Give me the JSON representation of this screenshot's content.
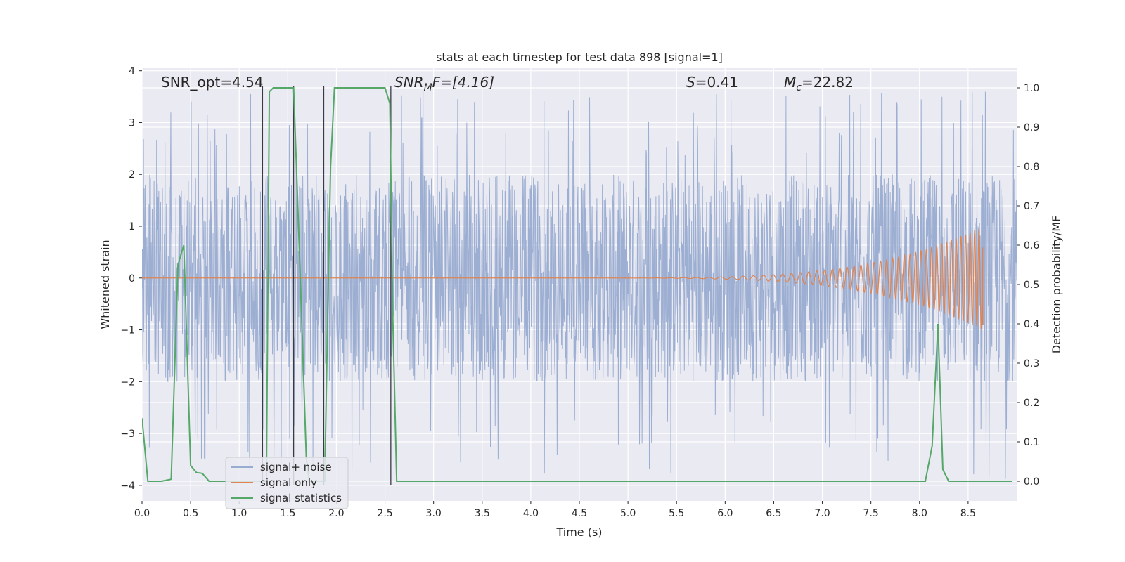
{
  "chart_data": {
    "type": "line",
    "title": "stats at each timestep for test data 898 [signal=1]",
    "xlabel": "Time (s)",
    "ylabel_left": "Whitened strain",
    "ylabel_right": "Detection probability/MF",
    "xlim": [
      0,
      9.0
    ],
    "ylim_left": [
      -4.3,
      4.05
    ],
    "ylim_right": [
      -0.05,
      1.05
    ],
    "x_ticks": [
      "0.0",
      "0.5",
      "1.0",
      "1.5",
      "2.0",
      "2.5",
      "3.0",
      "3.5",
      "4.0",
      "4.5",
      "5.0",
      "5.5",
      "6.0",
      "6.5",
      "7.0",
      "7.5",
      "8.0",
      "8.5"
    ],
    "y_left_ticks": [
      "4",
      "3",
      "2",
      "1",
      "0",
      "−1",
      "−2",
      "−3",
      "−4"
    ],
    "y_right_ticks": [
      "1.0",
      "0.9",
      "0.8",
      "0.7",
      "0.6",
      "0.5",
      "0.4",
      "0.3",
      "0.2",
      "0.1",
      "0.0"
    ],
    "grid": true,
    "legend_position": "lower-left",
    "annotations": {
      "snr_opt": "SNR_opt=4.54",
      "snr_mf_sym": "SNR",
      "snr_mf_sub": "M",
      "snr_mf_val": "F=[4.16]",
      "s_sym": "S",
      "s_val": "=0.41",
      "mc_sym": "M",
      "mc_sub": "c",
      "mc_val": "=22.82"
    },
    "series": [
      {
        "name": "signal+ noise",
        "color": "#98abd0",
        "description": "whitened strain noise, amplitude envelope roughly ±2 with spikes to about ±3.9",
        "envelope": [
          -2.0,
          2.0
        ],
        "peak_range": [
          -3.9,
          3.65
        ]
      },
      {
        "name": "signal only",
        "color": "#dd8452",
        "chirp": {
          "start": 4.3,
          "end": 8.65,
          "peak_amplitude": 1.0
        }
      },
      {
        "name": "signal statistics",
        "color": "#55a868",
        "axis": "right",
        "x": [
          0.0,
          0.06,
          0.12,
          0.2,
          0.3,
          0.37,
          0.43,
          0.5,
          0.56,
          0.62,
          0.69,
          0.75,
          0.8,
          0.9,
          1.0,
          1.1,
          1.2,
          1.24,
          1.28,
          1.31,
          1.35,
          1.4,
          1.5,
          1.56,
          1.6,
          1.65,
          1.69,
          1.72,
          1.75,
          1.8,
          1.85,
          1.88,
          1.91,
          1.94,
          1.98,
          2.05,
          2.2,
          2.4,
          2.5,
          2.55,
          2.58,
          2.62,
          2.7,
          3.0,
          4.0,
          5.0,
          6.0,
          7.0,
          7.8,
          8.06,
          8.13,
          8.19,
          8.24,
          8.3,
          8.4,
          8.6,
          8.95
        ],
        "values": [
          0.16,
          0.0,
          0.0,
          0.0,
          0.005,
          0.55,
          0.6,
          0.04,
          0.022,
          0.02,
          0.0,
          0.0,
          0.0,
          0.0,
          0.0,
          0.0,
          0.0,
          0.0,
          0.0,
          0.99,
          1.0,
          1.0,
          1.0,
          1.0,
          0.72,
          0.36,
          0.06,
          0.0,
          0.0,
          0.0,
          0.0,
          0.0,
          0.42,
          0.8,
          1.0,
          1.0,
          1.0,
          1.0,
          1.0,
          0.96,
          0.42,
          0.0,
          0.0,
          0.0,
          0.0,
          0.0,
          0.0,
          0.0,
          0.0,
          0.0,
          0.09,
          0.4,
          0.03,
          0.0,
          0.0,
          0.0,
          0.0
        ]
      }
    ],
    "vertical_markers": {
      "color": "#3a3a46",
      "lines": [
        {
          "x": 1.24,
          "y_range": [
            -4.0,
            3.7
          ]
        },
        {
          "x": 1.56,
          "y_range": [
            -4.0,
            3.7
          ]
        },
        {
          "x": 1.87,
          "y_range": [
            -4.0,
            3.7
          ]
        },
        {
          "x": 2.56,
          "y_range": [
            -4.0,
            3.7
          ]
        }
      ]
    }
  }
}
